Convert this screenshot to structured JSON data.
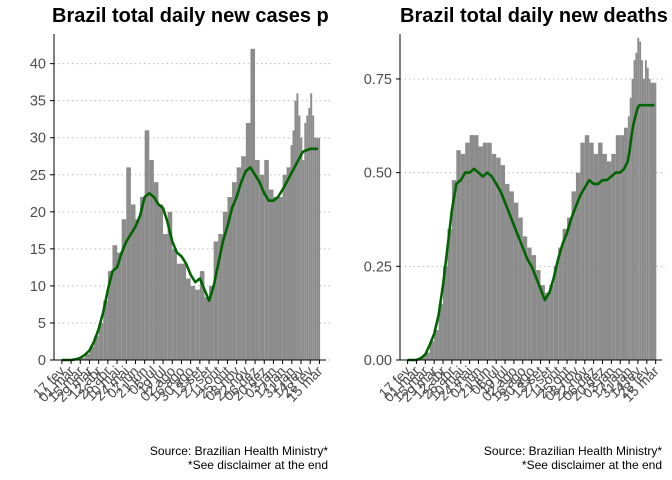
{
  "colors": {
    "bars": "#8c8c8c",
    "average_line": "#006400",
    "grid": "#bdbdbd",
    "axis": "#000000"
  },
  "chart_data": [
    {
      "type": "bar",
      "title": "Brazil total daily new cases p",
      "xlabel": "",
      "ylabel": "",
      "ylim": [
        0,
        44
      ],
      "y_ticks": [
        0,
        5,
        10,
        15,
        20,
        25,
        30,
        35,
        40
      ],
      "grid": "horizontal dotted",
      "x_ticks": [
        "17 fev",
        "01 mar",
        "15 mar",
        "29 mar",
        "12 abr",
        "26 abr",
        "10 mai",
        "24 mai",
        "07 jun",
        "21 jun",
        "05 jul",
        "19 jul",
        "02 ago",
        "16 ago",
        "30 ago",
        "13 set",
        "27 set",
        "11 out",
        "25 out",
        "08 nov",
        "22 nov",
        "06 dez",
        "20 dez",
        "03 jan",
        "17 jan",
        "31 jan",
        "14 fev",
        "28 fev",
        "15 mar"
      ],
      "series": [
        {
          "kind": "bar",
          "x": [
            0,
            7,
            14,
            21,
            28,
            35,
            42,
            49,
            56,
            63,
            70,
            77,
            84,
            91,
            98,
            105,
            112,
            119,
            126,
            133,
            140,
            147,
            154,
            161,
            168,
            175,
            182,
            189,
            196,
            203,
            210,
            217,
            224,
            231,
            238,
            245,
            252,
            259,
            266,
            273,
            280,
            287,
            294,
            301,
            308,
            315,
            322,
            329,
            336,
            342,
            348,
            351,
            354,
            357,
            360,
            363,
            366,
            369,
            372,
            375,
            378,
            381,
            384,
            387,
            390
          ],
          "values": [
            0,
            0,
            0,
            0.1,
            0.3,
            0.8,
            1.8,
            3.2,
            5,
            8,
            12,
            15.5,
            14.5,
            19,
            26,
            21,
            19,
            22,
            31,
            27,
            24,
            21,
            17,
            20,
            15,
            13,
            13,
            11,
            10,
            9.5,
            12,
            8.5,
            10,
            16,
            17,
            20,
            22,
            24,
            26,
            27.5,
            32,
            42,
            27,
            25,
            27,
            23,
            22,
            22,
            25,
            26,
            29,
            31,
            35,
            36,
            33,
            30,
            27,
            32,
            33,
            34,
            36,
            33,
            30,
            30,
            30
          ]
        },
        {
          "kind": "line",
          "x": [
            0,
            7,
            14,
            21,
            28,
            35,
            42,
            49,
            56,
            63,
            70,
            77,
            84,
            91,
            98,
            105,
            112,
            119,
            126,
            133,
            140,
            147,
            154,
            161,
            168,
            175,
            182,
            189,
            196,
            203,
            210,
            217,
            224,
            231,
            238,
            245,
            252,
            259,
            266,
            273,
            280,
            287,
            294,
            301,
            308,
            315,
            322,
            329,
            336,
            342,
            348,
            351,
            354,
            357,
            360,
            363,
            366,
            369,
            372,
            375,
            378,
            381,
            384,
            387,
            390
          ],
          "values": [
            0,
            0,
            0,
            0.1,
            0.3,
            0.7,
            1.3,
            2.5,
            4.2,
            6.5,
            9.5,
            12,
            12.5,
            14.5,
            16,
            17,
            18,
            19.5,
            22,
            22.5,
            22,
            21,
            20.5,
            18.5,
            16,
            14.5,
            14,
            13,
            11.5,
            10.5,
            11,
            9.5,
            8,
            10,
            13,
            16,
            18,
            20.5,
            22,
            24,
            25.5,
            26,
            25,
            24,
            22.5,
            21.5,
            21.5,
            22,
            23,
            24,
            25,
            25.5,
            26,
            26.5,
            27,
            27.5,
            28,
            28.2,
            28.3,
            28.4,
            28.5,
            28.5,
            28.5,
            28.5,
            28.5
          ]
        }
      ],
      "caption": [
        "Source: Brazilian Health Ministry*",
        "*See disclaimer at the end"
      ]
    },
    {
      "type": "bar",
      "title": "Brazil total daily new deaths",
      "xlabel": "",
      "ylabel": "",
      "ylim": [
        0,
        0.87
      ],
      "y_ticks": [
        0.0,
        0.25,
        0.5,
        0.75
      ],
      "y_tick_labels": [
        "0.00",
        "0.25",
        "0.50",
        "0.75"
      ],
      "grid": "horizontal dotted",
      "x_ticks": [
        "17 fev",
        "01 mar",
        "15 mar",
        "29 mar",
        "12 abr",
        "26 abr",
        "10 mai",
        "24 mai",
        "07 jun",
        "21 jun",
        "05 jul",
        "19 jul",
        "02 ago",
        "16 ago",
        "30 ago",
        "13 set",
        "27 set",
        "11 out",
        "25 out",
        "08 nov",
        "22 nov",
        "06 dez",
        "20 dez",
        "03 jan",
        "17 jan",
        "31 jan",
        "14 fev",
        "28 fev",
        "15 mar"
      ],
      "series": [
        {
          "kind": "bar",
          "x": [
            0,
            7,
            14,
            21,
            28,
            35,
            42,
            49,
            56,
            63,
            70,
            77,
            84,
            91,
            98,
            105,
            112,
            119,
            126,
            133,
            140,
            147,
            154,
            161,
            168,
            175,
            182,
            189,
            196,
            203,
            210,
            217,
            224,
            231,
            238,
            245,
            252,
            259,
            266,
            273,
            280,
            287,
            294,
            301,
            308,
            315,
            322,
            329,
            336,
            342,
            348,
            351,
            354,
            357,
            360,
            363,
            366,
            369,
            372,
            375,
            378,
            381,
            384,
            387,
            390
          ],
          "values": [
            0,
            0,
            0,
            0.01,
            0.02,
            0.05,
            0.08,
            0.15,
            0.25,
            0.35,
            0.48,
            0.56,
            0.55,
            0.58,
            0.6,
            0.6,
            0.57,
            0.58,
            0.58,
            0.55,
            0.54,
            0.52,
            0.47,
            0.45,
            0.42,
            0.38,
            0.33,
            0.3,
            0.28,
            0.24,
            0.2,
            0.18,
            0.2,
            0.25,
            0.3,
            0.35,
            0.38,
            0.45,
            0.5,
            0.58,
            0.6,
            0.58,
            0.55,
            0.58,
            0.55,
            0.53,
            0.55,
            0.6,
            0.6,
            0.62,
            0.65,
            0.7,
            0.75,
            0.8,
            0.82,
            0.86,
            0.85,
            0.8,
            0.75,
            0.8,
            0.78,
            0.75,
            0.74,
            0.74,
            0.74
          ]
        },
        {
          "kind": "line",
          "x": [
            0,
            7,
            14,
            21,
            28,
            35,
            42,
            49,
            56,
            63,
            70,
            77,
            84,
            91,
            98,
            105,
            112,
            119,
            126,
            133,
            140,
            147,
            154,
            161,
            168,
            175,
            182,
            189,
            196,
            203,
            210,
            217,
            224,
            231,
            238,
            245,
            252,
            259,
            266,
            273,
            280,
            287,
            294,
            301,
            308,
            315,
            322,
            329,
            336,
            342,
            348,
            351,
            354,
            357,
            360,
            363,
            366,
            369,
            372,
            375,
            378,
            381,
            384,
            387,
            390
          ],
          "values": [
            0,
            0,
            0,
            0.005,
            0.015,
            0.04,
            0.07,
            0.12,
            0.2,
            0.3,
            0.4,
            0.47,
            0.48,
            0.5,
            0.5,
            0.51,
            0.5,
            0.49,
            0.5,
            0.49,
            0.47,
            0.45,
            0.42,
            0.39,
            0.36,
            0.33,
            0.3,
            0.27,
            0.25,
            0.22,
            0.19,
            0.16,
            0.18,
            0.22,
            0.27,
            0.31,
            0.34,
            0.38,
            0.41,
            0.44,
            0.46,
            0.48,
            0.47,
            0.47,
            0.48,
            0.48,
            0.49,
            0.5,
            0.5,
            0.51,
            0.53,
            0.56,
            0.6,
            0.63,
            0.65,
            0.67,
            0.68,
            0.68,
            0.68,
            0.68,
            0.68,
            0.68,
            0.68,
            0.68,
            0.68
          ]
        }
      ],
      "caption": [
        "Source: Brazilian Health Ministry*",
        "*See disclaimer at the end"
      ]
    }
  ]
}
